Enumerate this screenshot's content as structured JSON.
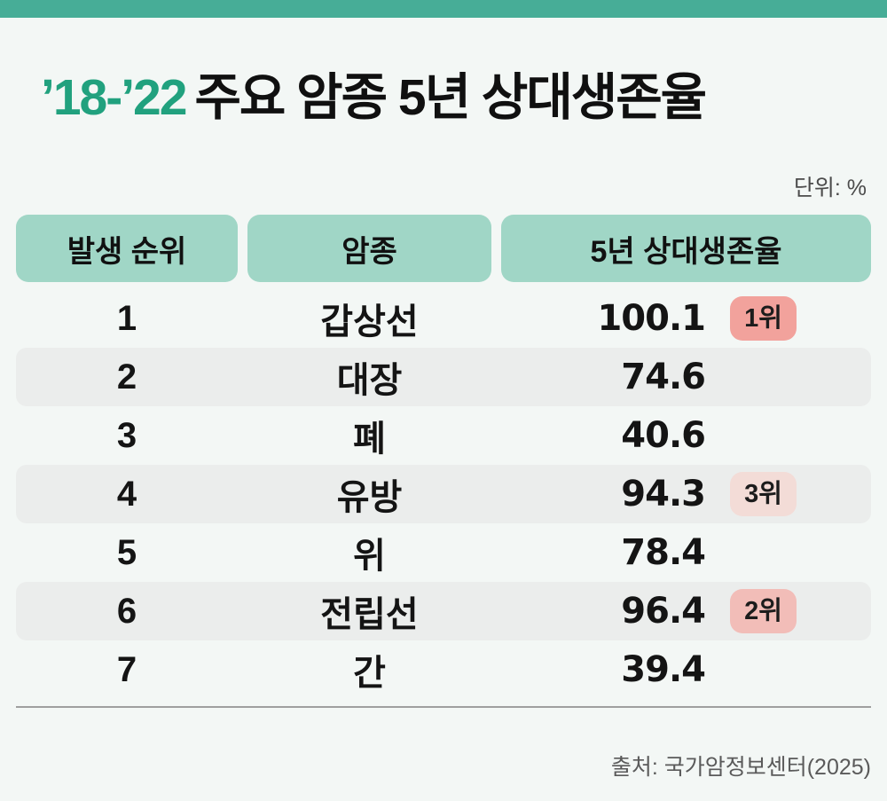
{
  "page": {
    "topbar_color": "#47AD97",
    "background_color": "#F3F7F5"
  },
  "header": {
    "title_accent": "’18-’22",
    "title_main": "주요 암종 5년 상대생존율",
    "accent_color": "#21A17E",
    "unit_label": "단위: %"
  },
  "table": {
    "header_bg": "#A0D6C6",
    "shaded_row_bg": "#EBEDEC",
    "columns": [
      {
        "label": "발생 순위"
      },
      {
        "label": "암종"
      },
      {
        "label": "5년 상대생존율"
      }
    ],
    "rows": [
      {
        "rank": "1",
        "cancer": "갑상선",
        "rate": "100.1",
        "badge": "1위",
        "badge_color": "#F2A29C"
      },
      {
        "rank": "2",
        "cancer": "대장",
        "rate": "74.6"
      },
      {
        "rank": "3",
        "cancer": "폐",
        "rate": "40.6"
      },
      {
        "rank": "4",
        "cancer": "유방",
        "rate": "94.3",
        "badge": "3위",
        "badge_color": "#F3DCD7"
      },
      {
        "rank": "5",
        "cancer": "위",
        "rate": "78.4"
      },
      {
        "rank": "6",
        "cancer": "전립선",
        "rate": "96.4",
        "badge": "2위",
        "badge_color": "#F2BDB8"
      },
      {
        "rank": "7",
        "cancer": "간",
        "rate": "39.4"
      }
    ]
  },
  "footer": {
    "source": "출처: 국가암정보센터(2025)"
  },
  "chart_data": {
    "type": "table",
    "title": "’18-’22 주요 암종 5년 상대생존율",
    "unit": "%",
    "columns": [
      "발생 순위",
      "암종",
      "5년 상대생존율"
    ],
    "rows": [
      [
        1,
        "갑상선",
        100.1
      ],
      [
        2,
        "대장",
        74.6
      ],
      [
        3,
        "폐",
        40.6
      ],
      [
        4,
        "유방",
        94.3
      ],
      [
        5,
        "위",
        78.4
      ],
      [
        6,
        "전립선",
        96.4
      ],
      [
        7,
        "간",
        39.4
      ]
    ],
    "survival_rank_badges": {
      "갑상선": "1위",
      "전립선": "2위",
      "유방": "3위"
    },
    "source": "출처: 국가암정보센터(2025)"
  }
}
